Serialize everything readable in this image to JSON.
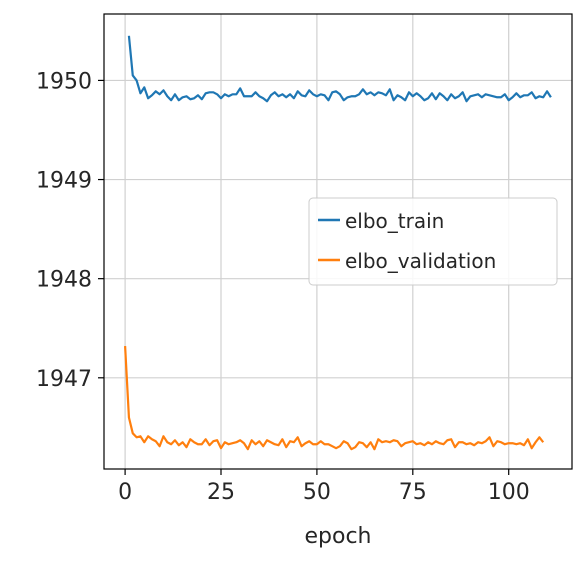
{
  "chart_data": {
    "type": "line",
    "title": "",
    "xlabel": "epoch",
    "ylabel": "",
    "xlim": [
      -5.5,
      116.5
    ],
    "ylim": [
      1946.08,
      1950.67
    ],
    "xticks": [
      0,
      25,
      50,
      75,
      100
    ],
    "yticks": [
      1947,
      1948,
      1949,
      1950
    ],
    "grid": true,
    "legend_position": "center-right",
    "series": [
      {
        "name": "elbo_train",
        "color": "#1f77b4",
        "x_start": 1,
        "values": [
          1950.45,
          1950.05,
          1950.0,
          1949.87,
          1949.93,
          1949.82,
          1949.85,
          1949.89,
          1949.86,
          1949.9,
          1949.84,
          1949.8,
          1949.86,
          1949.8,
          1949.83,
          1949.84,
          1949.81,
          1949.82,
          1949.85,
          1949.81,
          1949.87,
          1949.88,
          1949.88,
          1949.86,
          1949.82,
          1949.86,
          1949.84,
          1949.86,
          1949.86,
          1949.92,
          1949.84,
          1949.84,
          1949.84,
          1949.88,
          1949.84,
          1949.82,
          1949.79,
          1949.85,
          1949.88,
          1949.84,
          1949.86,
          1949.83,
          1949.86,
          1949.82,
          1949.89,
          1949.85,
          1949.84,
          1949.9,
          1949.86,
          1949.84,
          1949.86,
          1949.85,
          1949.8,
          1949.88,
          1949.89,
          1949.86,
          1949.8,
          1949.83,
          1949.84,
          1949.84,
          1949.86,
          1949.91,
          1949.86,
          1949.88,
          1949.85,
          1949.88,
          1949.87,
          1949.85,
          1949.91,
          1949.8,
          1949.85,
          1949.83,
          1949.8,
          1949.88,
          1949.84,
          1949.87,
          1949.84,
          1949.8,
          1949.82,
          1949.87,
          1949.81,
          1949.87,
          1949.84,
          1949.8,
          1949.86,
          1949.82,
          1949.84,
          1949.88,
          1949.79,
          1949.84,
          1949.85,
          1949.86,
          1949.83,
          1949.86,
          1949.85,
          1949.84,
          1949.83,
          1949.83,
          1949.86,
          1949.8,
          1949.83,
          1949.87,
          1949.83,
          1949.85,
          1949.85,
          1949.88,
          1949.82,
          1949.84,
          1949.83,
          1949.89,
          1949.83
        ]
      },
      {
        "name": "elbo_validation",
        "color": "#ff7f0e",
        "x_start": 0,
        "values": [
          1947.32,
          1946.6,
          1946.44,
          1946.4,
          1946.41,
          1946.35,
          1946.41,
          1946.38,
          1946.36,
          1946.31,
          1946.41,
          1946.35,
          1946.33,
          1946.37,
          1946.32,
          1946.35,
          1946.3,
          1946.38,
          1946.35,
          1946.33,
          1946.33,
          1946.38,
          1946.32,
          1946.36,
          1946.37,
          1946.29,
          1946.35,
          1946.33,
          1946.34,
          1946.35,
          1946.37,
          1946.34,
          1946.28,
          1946.37,
          1946.33,
          1946.36,
          1946.31,
          1946.37,
          1946.35,
          1946.33,
          1946.32,
          1946.38,
          1946.3,
          1946.36,
          1946.35,
          1946.4,
          1946.31,
          1946.34,
          1946.36,
          1946.33,
          1946.33,
          1946.36,
          1946.33,
          1946.33,
          1946.31,
          1946.29,
          1946.31,
          1946.36,
          1946.34,
          1946.28,
          1946.3,
          1946.35,
          1946.34,
          1946.3,
          1946.35,
          1946.28,
          1946.38,
          1946.35,
          1946.36,
          1946.35,
          1946.37,
          1946.36,
          1946.31,
          1946.34,
          1946.35,
          1946.36,
          1946.33,
          1946.34,
          1946.32,
          1946.35,
          1946.33,
          1946.36,
          1946.34,
          1946.33,
          1946.37,
          1946.38,
          1946.3,
          1946.35,
          1946.35,
          1946.33,
          1946.34,
          1946.32,
          1946.35,
          1946.34,
          1946.36,
          1946.4,
          1946.31,
          1946.36,
          1946.35,
          1946.33,
          1946.34,
          1946.34,
          1946.33,
          1946.34,
          1946.32,
          1946.38,
          1946.29,
          1946.35,
          1946.4,
          1946.35
        ]
      }
    ]
  }
}
